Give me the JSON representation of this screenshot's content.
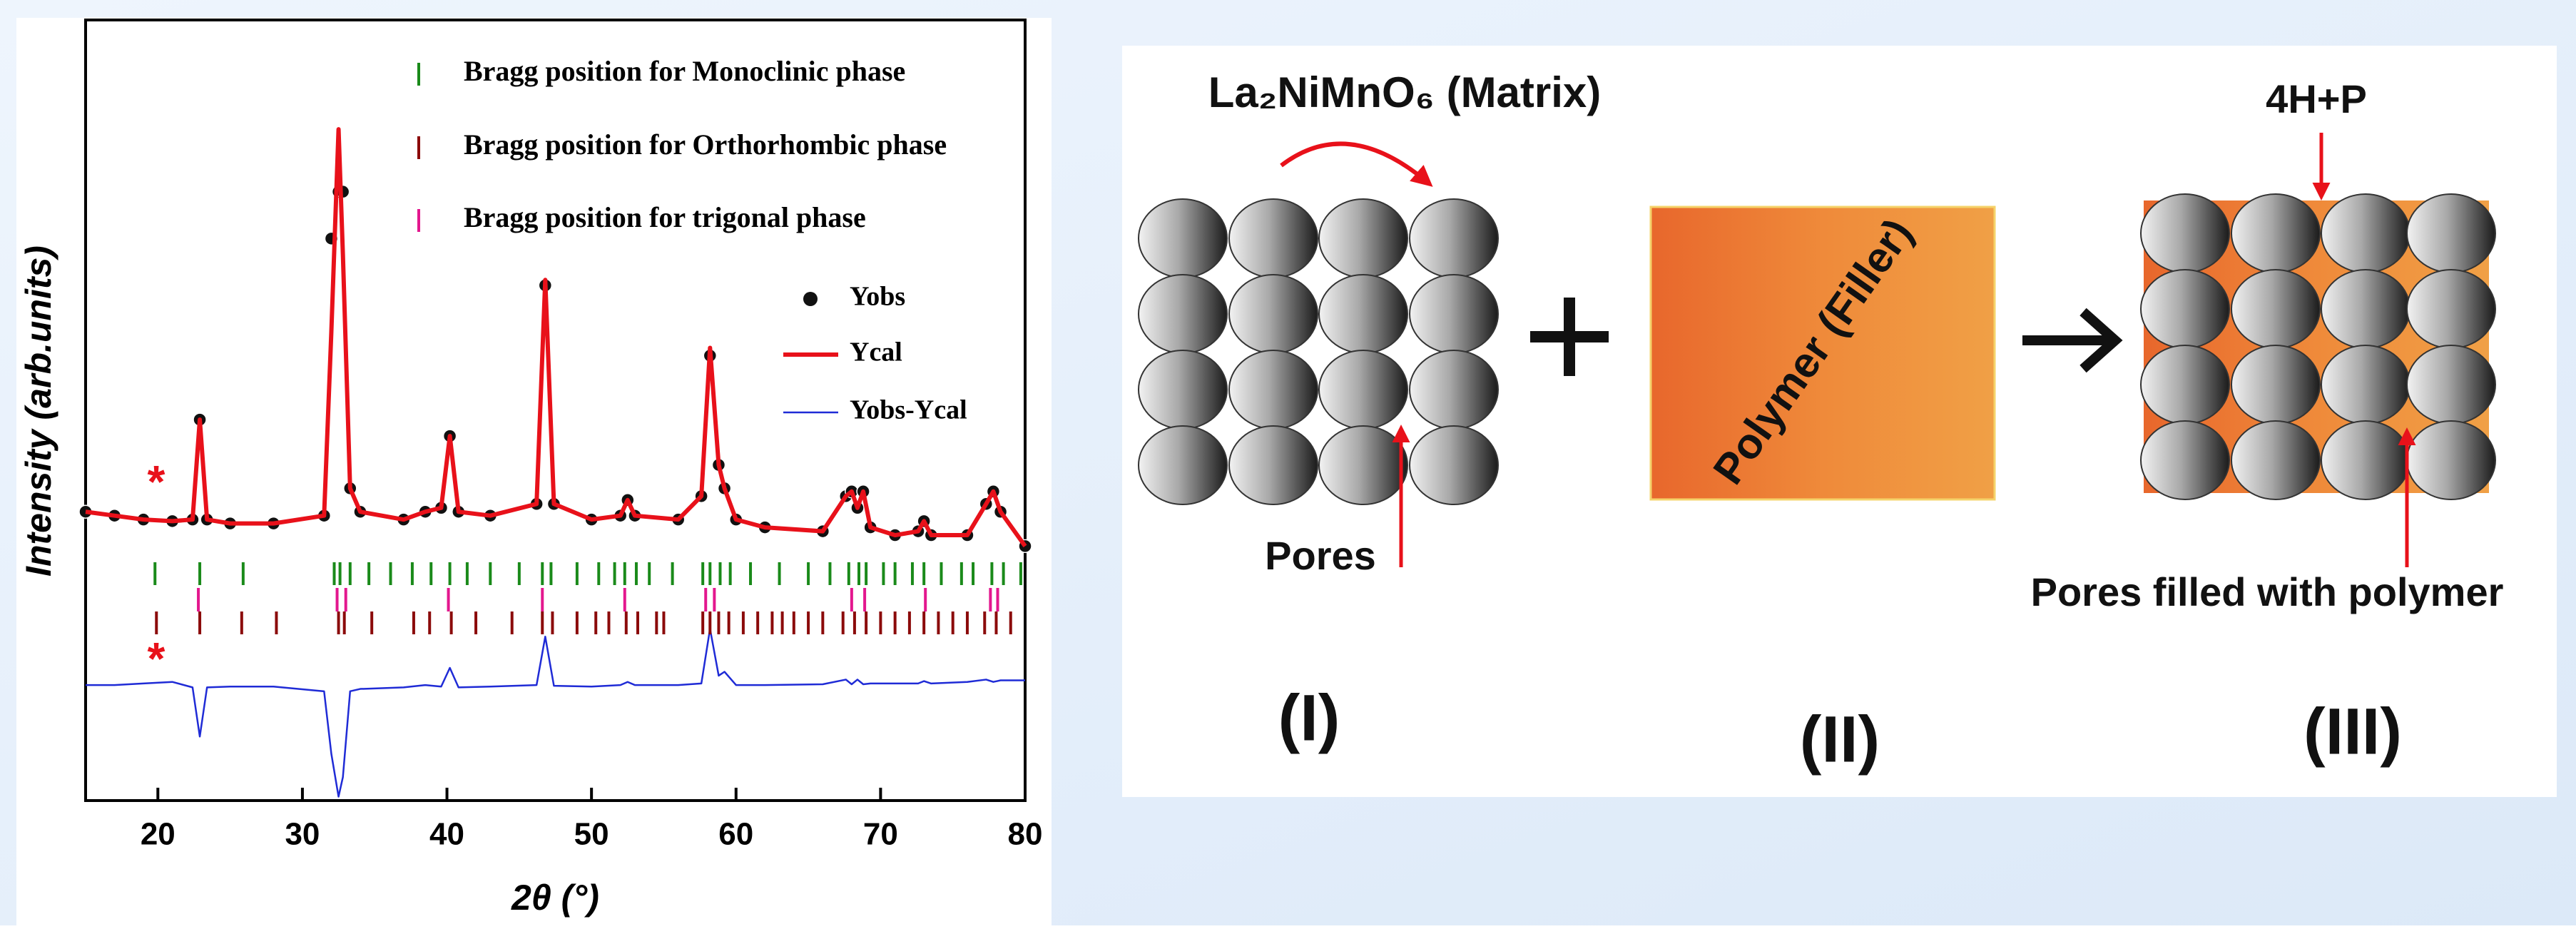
{
  "chart_data": {
    "type": "line",
    "xlabel": "2θ (°)",
    "ylabel": "Intensity (arb.units)",
    "xlim": [
      15,
      80
    ],
    "xticks": [
      20,
      30,
      40,
      50,
      60,
      70,
      80
    ],
    "ylim": [
      0,
      100
    ],
    "x": [
      15,
      17,
      19,
      21,
      22.4,
      22.9,
      23.4,
      25,
      28,
      31.5,
      32.0,
      32.5,
      32.8,
      33.3,
      34,
      37,
      38.5,
      39.6,
      40.2,
      40.8,
      43,
      46.2,
      46.8,
      47.4,
      50,
      52,
      52.5,
      53,
      56,
      57.6,
      58.2,
      58.8,
      59.2,
      60,
      62,
      66,
      67.6,
      68.0,
      68.4,
      68.8,
      69.3,
      71,
      72.6,
      73.0,
      73.5,
      76,
      77.3,
      77.8,
      78.3,
      80
    ],
    "series": [
      {
        "name": "Yobs",
        "color": "#111111",
        "style": "points",
        "values": [
          37,
          36.5,
          36,
          35.8,
          36,
          48.8,
          36,
          35.5,
          35.5,
          36.5,
          72,
          78,
          78,
          40,
          37,
          36,
          37,
          37.5,
          46.7,
          37,
          36.5,
          38,
          66,
          38,
          36,
          36.5,
          38.5,
          36.5,
          36,
          39,
          57,
          43,
          40,
          36,
          35,
          34.5,
          39,
          39.6,
          37.5,
          39.6,
          35,
          34,
          34.5,
          35.8,
          34,
          34,
          38,
          39.6,
          37,
          32.6
        ]
      },
      {
        "name": "Ycal",
        "color": "#e8111a",
        "style": "line",
        "values": [
          37,
          36.5,
          36,
          35.8,
          36,
          48.8,
          36,
          35.5,
          35.5,
          36.5,
          60,
          86,
          70,
          40,
          37,
          36,
          37,
          37.5,
          46.7,
          37,
          36.5,
          38,
          66.7,
          38,
          36,
          36.5,
          38.5,
          36.5,
          36,
          39,
          58,
          43,
          40,
          36,
          35,
          34.5,
          39,
          39.6,
          37.5,
          39.6,
          35,
          34,
          34.5,
          35.8,
          34,
          34,
          38,
          39.6,
          37,
          32.6
        ]
      },
      {
        "name": "Yobs-Ycal",
        "color": "#1f2bd6",
        "style": "thin",
        "values": [
          14.8,
          14.8,
          15,
          15.2,
          14.5,
          8.2,
          14.5,
          14.6,
          14.6,
          14,
          6,
          0.5,
          3,
          14,
          14.3,
          14.5,
          14.8,
          14.6,
          17,
          14.5,
          14.6,
          14.8,
          21,
          14.7,
          14.6,
          14.8,
          15.2,
          14.8,
          14.8,
          15,
          22,
          16,
          16.5,
          14.8,
          14.8,
          14.9,
          15.5,
          14.9,
          15.5,
          14.9,
          15,
          15,
          15,
          15.3,
          15,
          15.2,
          15.5,
          15.2,
          15.4,
          15.4
        ]
      }
    ],
    "bragg": [
      {
        "name": "Bragg position for Monoclinic phase",
        "color": "#1a8a1a",
        "positions": [
          19.8,
          22.9,
          25.9,
          32.2,
          32.6,
          33.3,
          34.6,
          36.1,
          37.6,
          38.9,
          40.2,
          41.4,
          43,
          45,
          46.6,
          47.2,
          49,
          50.5,
          51.6,
          52.3,
          53.1,
          54,
          55.6,
          57.7,
          58.2,
          58.9,
          59.6,
          61,
          63,
          65,
          66.5,
          67.8,
          68.5,
          69,
          70.2,
          71,
          72.2,
          73,
          74.2,
          75.6,
          76.4,
          77.7,
          78.5,
          79.7
        ]
      },
      {
        "name": "Bragg position for Orthorhombic phase",
        "color": "#8b0a0a",
        "positions": [
          19.9,
          22.9,
          25.8,
          28.2,
          32.5,
          32.9,
          34.8,
          37.7,
          38.8,
          40.3,
          42,
          44.5,
          46.6,
          47.3,
          49,
          50.3,
          51.2,
          52.4,
          53.2,
          54.5,
          55,
          57.7,
          58.2,
          58.8,
          59.5,
          60.5,
          61.5,
          62.5,
          63.2,
          64,
          65,
          66,
          67.4,
          68.2,
          69,
          70,
          71,
          72,
          73,
          74,
          75,
          76,
          77.2,
          78,
          79
        ]
      },
      {
        "name": "Bragg position for trigonal phase",
        "color": "#e3178e",
        "positions": [
          22.8,
          32.4,
          33,
          40.1,
          46.6,
          52.3,
          57.9,
          58.5,
          68,
          68.9,
          73.1,
          77.6,
          78.1
        ]
      }
    ],
    "annotations": [
      "*",
      "*"
    ]
  },
  "diagram": {
    "matrix_label": "La₂NiMnO₆ (Matrix)",
    "pores_label": "Pores",
    "filler_label": "Polymer  (Filler)",
    "product_label": "4H+P",
    "filled_pores_label": "Pores filled with polymer",
    "stages": [
      "(I)",
      "(II)",
      "(III)"
    ]
  }
}
